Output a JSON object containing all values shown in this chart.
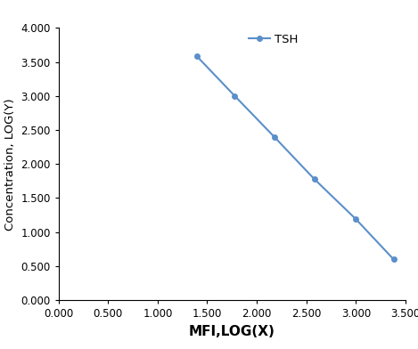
{
  "x": [
    1.398,
    1.778,
    2.176,
    2.58,
    3.0,
    3.38
  ],
  "y": [
    3.58,
    3.0,
    2.4,
    1.78,
    1.19,
    0.6
  ],
  "line_color": "#5b8fc9",
  "marker": "o",
  "marker_size": 4,
  "line_width": 1.5,
  "legend_label": "TSH",
  "xlabel": "MFI,LOG(X)",
  "ylabel": "Concentration, LOG(Y)",
  "xlim": [
    0.0,
    3.5
  ],
  "ylim": [
    0.0,
    4.0
  ],
  "xticks": [
    0.0,
    0.5,
    1.0,
    1.5,
    2.0,
    2.5,
    3.0,
    3.5
  ],
  "yticks": [
    0.0,
    0.5,
    1.0,
    1.5,
    2.0,
    2.5,
    3.0,
    3.5,
    4.0
  ],
  "xlabel_fontsize": 11,
  "ylabel_fontsize": 9.5,
  "tick_fontsize": 8.5,
  "legend_fontsize": 9.5,
  "background_color": "#ffffff"
}
